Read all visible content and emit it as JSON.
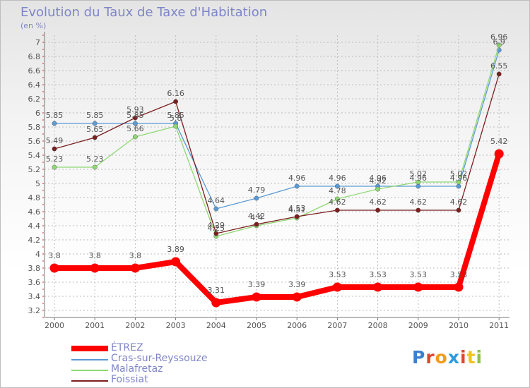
{
  "title": "Evolution du Taux de Taxe d'Habitation",
  "unit": "(en %)",
  "logo": "Proxiti",
  "colors": {
    "ETREZ": "#ff0000",
    "Cras-sur-Reyssouze": "#5b9bd5",
    "Malafretaz": "#8ed873",
    "Foissiat": "#7b1f1f",
    "grid": "#bcbcbc",
    "title": "#7f86c8",
    "tick_marks": "#cc3333"
  },
  "chart_data": {
    "type": "line",
    "title": "Evolution du Taux de Taxe d'Habitation",
    "ylabel": "(en %)",
    "xlabel": "",
    "x": [
      "2000",
      "2001",
      "2002",
      "2003",
      "2004",
      "2005",
      "2006",
      "2007",
      "2008",
      "2009",
      "2010",
      "2011"
    ],
    "ylim": [
      3.1,
      7.1
    ],
    "yticks": [
      "3.2",
      "3.4",
      "3.6",
      "3.8",
      "4",
      "4.2",
      "4.4",
      "4.6",
      "4.8",
      "5",
      "5.2",
      "5.4",
      "5.6",
      "5.8",
      "6",
      "6.2",
      "6.4",
      "6.6",
      "6.8",
      "7"
    ],
    "grid": true,
    "legend_position": "bottom-left",
    "series": [
      {
        "name": "ÉTREZ",
        "values": [
          3.8,
          3.8,
          3.8,
          3.89,
          3.31,
          3.39,
          3.39,
          3.53,
          3.53,
          3.53,
          3.53,
          5.42
        ],
        "labels": [
          "3.8",
          "3.8",
          "3.8",
          "3.89",
          "3.31",
          "3.39",
          "3.39",
          "3.53",
          "3.53",
          "3.53",
          "3.53",
          "5.42"
        ]
      },
      {
        "name": "Cras-sur-Reyssouze",
        "values": [
          5.85,
          5.85,
          5.85,
          5.85,
          4.64,
          4.79,
          4.96,
          4.96,
          4.96,
          4.96,
          4.96,
          6.89
        ],
        "labels": [
          "5.85",
          "5.85",
          "5.85",
          "5.85",
          "4.64",
          "4.79",
          "4.96",
          "4.96",
          "4.96",
          "4.96",
          "4.96",
          "6.9"
        ]
      },
      {
        "name": "Malafretaz",
        "values": [
          5.23,
          5.23,
          5.66,
          5.81,
          4.25,
          4.4,
          4.51,
          4.78,
          4.92,
          5.02,
          5.02,
          6.96
        ],
        "labels": [
          "5.23",
          "5.23",
          "5.66",
          "5.8",
          "4.25",
          "4.4",
          "4.51",
          "4.78",
          "4.92",
          "5.02",
          "5.02",
          "6.96"
        ]
      },
      {
        "name": "Foissiat",
        "values": [
          5.49,
          5.65,
          5.93,
          6.16,
          4.29,
          4.42,
          4.53,
          4.62,
          4.62,
          4.62,
          4.62,
          6.55
        ],
        "labels": [
          "5.49",
          "5.65",
          "5.93",
          "6.16",
          "4.29",
          "4.42",
          "4.53",
          "4.62",
          "4.62",
          "4.62",
          "4.62",
          "6.55"
        ]
      }
    ]
  }
}
